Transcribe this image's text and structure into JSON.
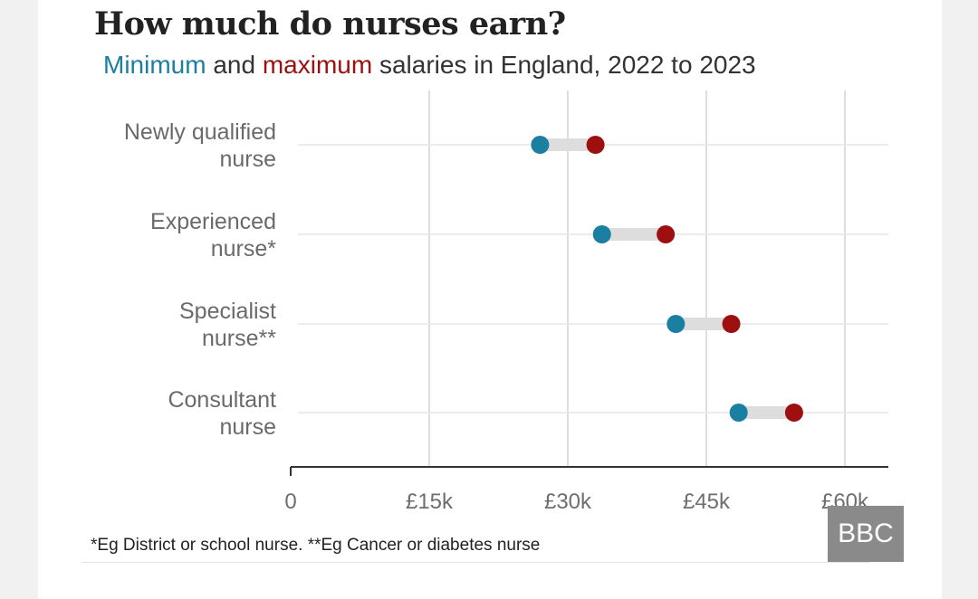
{
  "chart_data": {
    "type": "dumbbell",
    "title": "How much do nurses earn?",
    "subtitle": {
      "min_word": "Minimum",
      "and_word": " and ",
      "max_word": "maximum",
      "rest": " salaries in England, 2022 to 2023"
    },
    "categories": [
      [
        "Newly qualified",
        "nurse"
      ],
      [
        "Experienced",
        "nurse*"
      ],
      [
        "Specialist",
        "nurse**"
      ],
      [
        "Consultant",
        "nurse"
      ]
    ],
    "series": [
      {
        "name": "Minimum",
        "values": [
          27000,
          33700,
          41700,
          48500
        ]
      },
      {
        "name": "Maximum",
        "values": [
          33000,
          40600,
          47700,
          54500
        ]
      }
    ],
    "x_ticks": [
      0,
      15000,
      30000,
      45000,
      60000
    ],
    "x_tick_labels": [
      "0",
      "£15k",
      "£30k",
      "£45k",
      "£60k"
    ],
    "xlim": [
      0,
      65000
    ],
    "grid": "vertical",
    "colors": {
      "min": "#1a7fa0",
      "max": "#9e0f0f",
      "connector": "#dddddd",
      "grid": "#d3d3d3",
      "axis": "#333333"
    }
  },
  "footnote": "*Eg District or school nurse. **Eg Cancer or diabetes nurse",
  "source_logo": "BBC"
}
